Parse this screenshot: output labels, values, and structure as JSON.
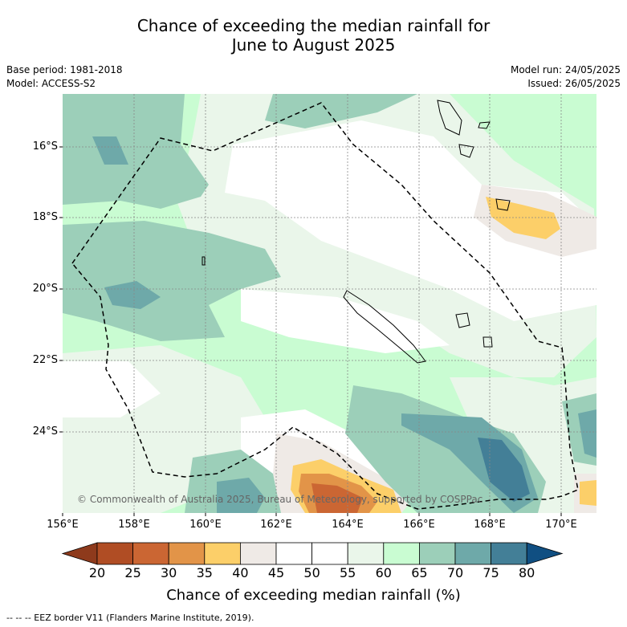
{
  "title": {
    "line1": "Chance of exceeding the median rainfall for",
    "line2": "June to August 2025"
  },
  "meta": {
    "base_period": "Base period: 1981-2018",
    "model": "Model: ACCESS-S2",
    "model_run": "Model run: 24/05/2025",
    "issued": "Issued: 26/05/2025"
  },
  "map": {
    "lat_labels": [
      "16°S",
      "18°S",
      "20°S",
      "22°S",
      "24°S"
    ],
    "lon_labels": [
      "156°E",
      "158°E",
      "160°E",
      "162°E",
      "164°E",
      "166°E",
      "168°E",
      "170°E"
    ],
    "copyright": "© Commonwealth of Australia 2025, Bureau of Meteorology, supported by COSPPac"
  },
  "colorbar": {
    "labels": [
      "20",
      "25",
      "30",
      "35",
      "40",
      "45",
      "50",
      "55",
      "60",
      "65",
      "70",
      "75",
      "80"
    ],
    "colors": [
      "#8e3a1c",
      "#b04d24",
      "#cb6633",
      "#e29448",
      "#fccf69",
      "#efeae6",
      "#ffffff",
      "#ffffff",
      "#eaf6ea",
      "#c9fcd2",
      "#9ccfb9",
      "#6ea9a9",
      "#437f97",
      "#104f82"
    ],
    "title": "Chance of exceeding median rainfall (%)"
  },
  "footer": "--  --  -- EEZ border V11 (Flanders Marine Institute, 2019)."
}
